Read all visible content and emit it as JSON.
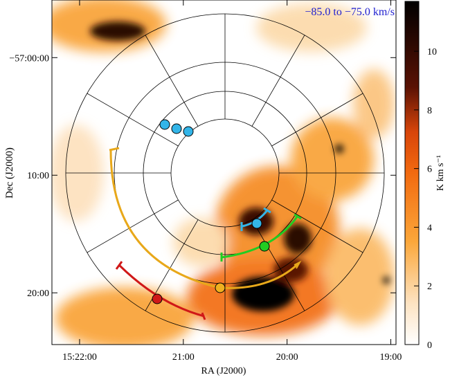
{
  "chart_data": {
    "type": "image",
    "annotation": "−85.0 to −75.0 km/s",
    "xlabel": "RA (J2000)",
    "ylabel": "Dec (J2000)",
    "xlim": [
      55336,
      55137
    ],
    "xticks": [
      {
        "value": 55320,
        "label": "15:22:00"
      },
      {
        "value": 55260,
        "label": "21:00"
      },
      {
        "value": 55200,
        "label": "20:00"
      },
      {
        "value": 55140,
        "label": "19:00"
      }
    ],
    "ylim": [
      -3444.4,
      -3415.1
    ],
    "yticks": [
      {
        "value": -3420,
        "label": "−57:00:00"
      },
      {
        "value": -3430,
        "label": "10:00"
      },
      {
        "value": -3440,
        "label": "20:00"
      }
    ],
    "colorbar_label": "K km s⁻¹",
    "clim": [
      0,
      11.7
    ],
    "cticks": [
      0,
      2,
      4,
      6,
      8,
      10
    ]
  }
}
